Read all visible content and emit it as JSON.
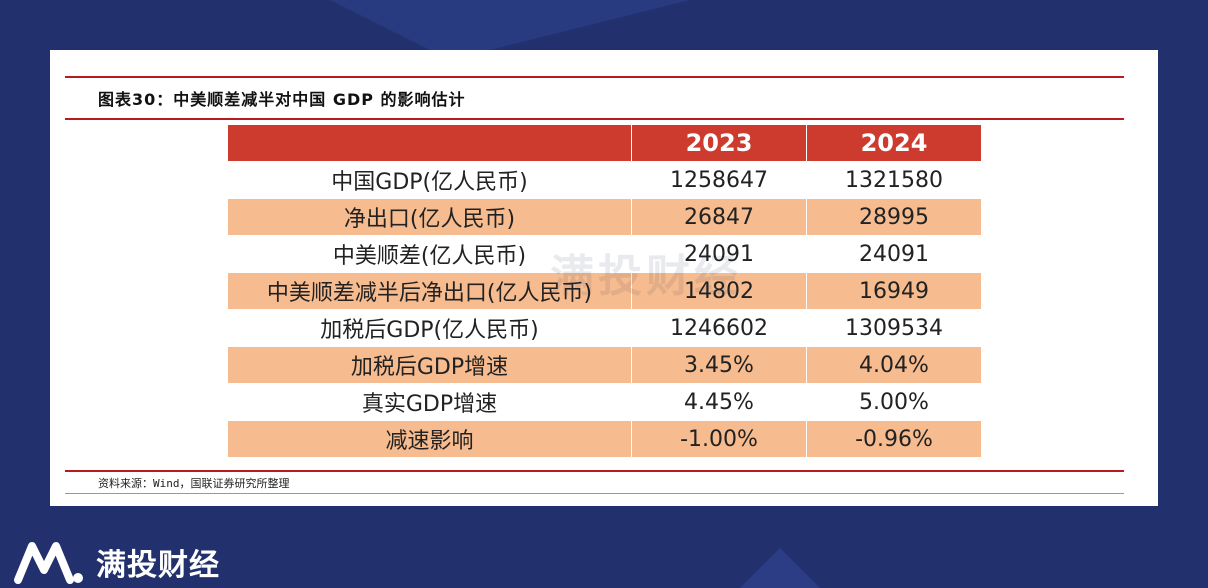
{
  "figure": {
    "title": "图表30：中美顺差减半对中国 GDP 的影响估计",
    "source": "资料来源：Wind，国联证券研究所整理",
    "watermark": "满投财经"
  },
  "table": {
    "headers": [
      "",
      "2023",
      "2024"
    ],
    "rows": [
      {
        "label": "中国GDP(亿人民币)",
        "v2023": "1258647",
        "v2024": "1321580"
      },
      {
        "label": "净出口(亿人民币)",
        "v2023": "26847",
        "v2024": "28995"
      },
      {
        "label": "中美顺差(亿人民币)",
        "v2023": "24091",
        "v2024": "24091"
      },
      {
        "label": "中美顺差减半后净出口(亿人民币)",
        "v2023": "14802",
        "v2024": "16949"
      },
      {
        "label": "加税后GDP(亿人民币)",
        "v2023": "1246602",
        "v2024": "1309534"
      },
      {
        "label": "加税后GDP增速",
        "v2023": "3.45%",
        "v2024": "4.04%"
      },
      {
        "label": "真实GDP增速",
        "v2023": "4.45%",
        "v2024": "5.00%"
      },
      {
        "label": "减速影响",
        "v2023": "-1.00%",
        "v2024": "-0.96%"
      }
    ]
  },
  "brand": {
    "name": "满投财经",
    "logo_icon": "brand-logo-icon"
  },
  "colors": {
    "background": "#22306e",
    "header": "#cc3b2e",
    "band": "#f6bb8f",
    "rule": "#b71c1c"
  }
}
